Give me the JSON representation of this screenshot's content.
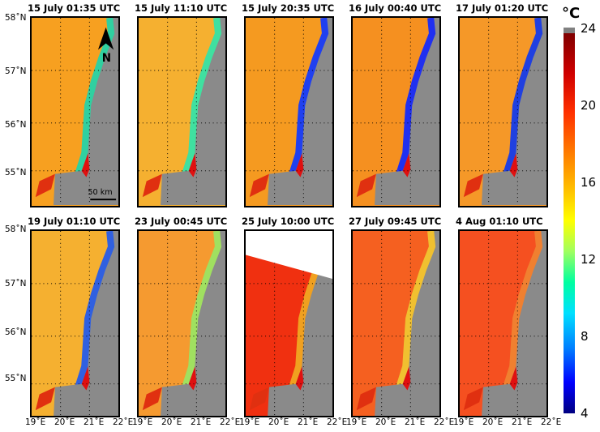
{
  "panels": [
    {
      "title": "15 July 01:35 UTC",
      "sea": "#f7a020",
      "band": "#30d0a0"
    },
    {
      "title": "15 July 11:10 UTC",
      "sea": "#f5b030",
      "band": "#40e0a0"
    },
    {
      "title": "15 July 20:35 UTC",
      "sea": "#f59a20",
      "band": "#2040f0"
    },
    {
      "title": "16 July 00:40 UTC",
      "sea": "#f59020",
      "band": "#2030f0"
    },
    {
      "title": "17 July 01:20 UTC",
      "sea": "#f59828",
      "band": "#2040e0"
    },
    {
      "title": "19 July 01:10 UTC",
      "sea": "#f5b030",
      "band": "#3060e0"
    },
    {
      "title": "23 July 00:45 UTC",
      "sea": "#f59a30",
      "band": "#a0e060"
    },
    {
      "title": "25 July 10:00 UTC",
      "sea": "#f03010",
      "band": "#f0a020"
    },
    {
      "title": "27 July 09:45 UTC",
      "sea": "#f56020",
      "band": "#f0c030"
    },
    {
      "title": "4 Aug 01:10 UTC",
      "sea": "#f55020",
      "band": "#f08030"
    }
  ],
  "lat_labels": [
    "58˚N",
    "57˚N",
    "56˚N",
    "55˚N"
  ],
  "lon_labels": [
    "19˚E",
    "20˚E",
    "21˚E",
    "22˚E"
  ],
  "north_label": "N",
  "scale_label": "50 km",
  "colorbar": {
    "unit": "°C",
    "ticks": [
      "24",
      "20",
      "16",
      "12",
      "8",
      "4"
    ],
    "range": [
      4,
      24
    ]
  }
}
